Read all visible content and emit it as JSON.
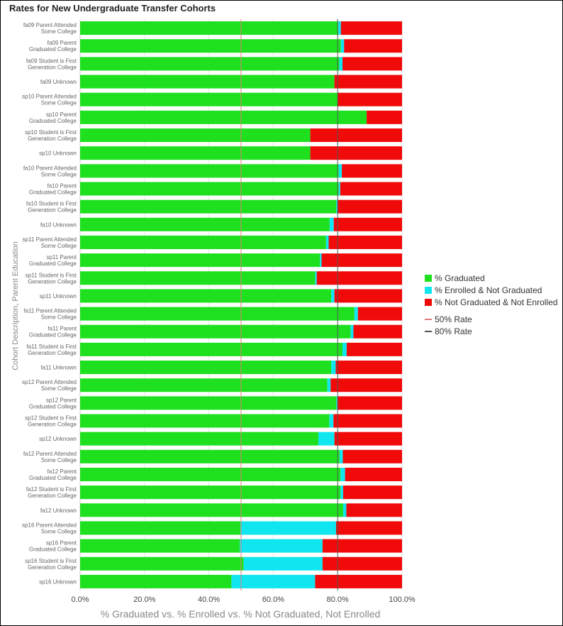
{
  "chart_data": {
    "type": "bar",
    "orientation": "horizontal",
    "stacked": true,
    "title": "Rates for New Undergraduate Transfer Cohorts",
    "xlabel": "% Graduated vs. % Enrolled vs. % Not Graduated, Not Enrolled",
    "ylabel": "Cohort Description, Parent Education",
    "xlim": [
      0,
      100
    ],
    "xticks": [
      "0.0%",
      "20.0%",
      "40.0%",
      "60.0%",
      "80.0%",
      "100.0%"
    ],
    "categories": [
      [
        "fa09 Parent Attended",
        "Some College"
      ],
      [
        "fa09 Parent",
        "Graduated College"
      ],
      [
        "fa09 Student is First",
        "Generation College"
      ],
      [
        "fa09 Unknown"
      ],
      [
        "sp10 Parent Attended",
        "Some College"
      ],
      [
        "sp10 Parent",
        "Graduated College"
      ],
      [
        "sp10 Student is First",
        "Generation College"
      ],
      [
        "sp10 Unknown"
      ],
      [
        "fa10 Parent Attended",
        "Some College"
      ],
      [
        "fa10 Parent",
        "Graduated College"
      ],
      [
        "fa10 Student is First",
        "Generation College"
      ],
      [
        "fa10 Unknown"
      ],
      [
        "sp11 Parent Attended",
        "Some College"
      ],
      [
        "sp11 Parent",
        "Graduated College"
      ],
      [
        "sp11 Student is First",
        "Generation College"
      ],
      [
        "sp11 Unknown"
      ],
      [
        "fa11 Parent Attended",
        "Some College"
      ],
      [
        "fa11 Parent",
        "Graduated College"
      ],
      [
        "fa11 Student is First",
        "Generation College"
      ],
      [
        "fa11 Unknown"
      ],
      [
        "sp12 Parent Attended",
        "Some College"
      ],
      [
        "sp12 Parent",
        "Graduated College"
      ],
      [
        "sp12 Student is First",
        "Generation College"
      ],
      [
        "sp12 Unknown"
      ],
      [
        "fa12 Parent Attended",
        "Some College"
      ],
      [
        "fa12 Parent",
        "Graduated College"
      ],
      [
        "fa12 Student is First",
        "Generation College"
      ],
      [
        "fa12 Unknown"
      ],
      [
        "sp16 Parent Attended",
        "Some College"
      ],
      [
        "sp16 Parent",
        "Graduated College"
      ],
      [
        "sp16 Student is First",
        "Generation College"
      ],
      [
        "sp16 Unknown"
      ]
    ],
    "series": [
      {
        "name": "% Graduated",
        "color": "#1ee01e",
        "values": [
          80.2,
          81.0,
          80.5,
          79.0,
          80.0,
          89.0,
          71.5,
          71.5,
          80.3,
          80.3,
          79.6,
          77.5,
          76.4,
          74.5,
          73.0,
          78.0,
          85.2,
          84.0,
          81.5,
          78.0,
          76.8,
          79.6,
          77.4,
          74.0,
          80.6,
          80.9,
          80.9,
          81.7,
          49.8,
          49.6,
          50.8,
          47.0
        ]
      },
      {
        "name": "% Enrolled & Not Graduated",
        "color": "#0fe6f0",
        "values": [
          0.8,
          1.0,
          1.0,
          0.0,
          0.0,
          0.0,
          0.0,
          0.0,
          1.0,
          0.5,
          0.4,
          1.3,
          0.8,
          0.5,
          0.5,
          1.0,
          1.1,
          0.9,
          1.3,
          1.4,
          1.0,
          0.3,
          1.3,
          5.0,
          1.0,
          1.4,
          0.8,
          1.0,
          29.7,
          25.7,
          24.5,
          26.0
        ]
      },
      {
        "name": "% Not Graduated & Not Enrolled",
        "color": "#f00a0a",
        "values": [
          19.0,
          18.0,
          18.5,
          21.0,
          20.0,
          11.0,
          28.5,
          28.5,
          18.7,
          19.2,
          20.0,
          21.2,
          22.8,
          25.0,
          26.5,
          21.0,
          13.7,
          15.1,
          17.2,
          20.6,
          22.2,
          20.1,
          21.3,
          21.0,
          18.4,
          17.7,
          18.3,
          17.3,
          20.5,
          24.7,
          24.7,
          27.0
        ]
      }
    ],
    "reference_lines": [
      {
        "name": "50% Rate",
        "value": 50,
        "color": "#e07a7a"
      },
      {
        "name": "80% Rate",
        "value": 80,
        "color": "#555555"
      }
    ],
    "legend_position": "right"
  }
}
